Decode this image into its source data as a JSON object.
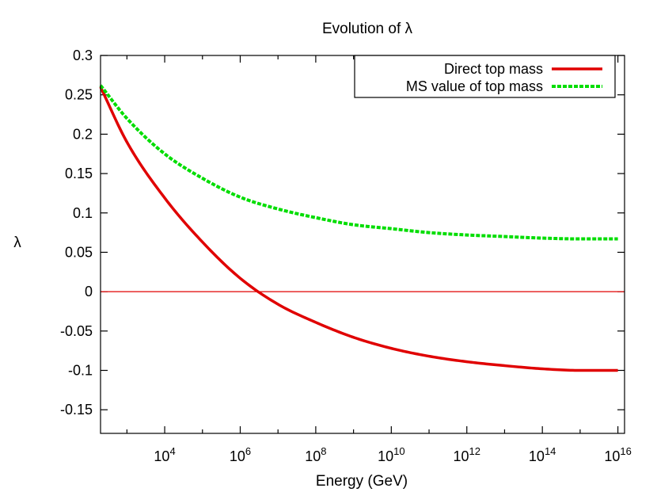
{
  "chart_data": {
    "type": "line",
    "title": "Evolution of λ",
    "xlabel": "Energy (GeV)",
    "ylabel": "λ",
    "x_scale": "log",
    "xlim": [
      200,
      15000000000000000
    ],
    "ylim": [
      -0.18,
      0.3
    ],
    "x_ticks": [
      {
        "value": 10000,
        "base": "10",
        "exp": "4"
      },
      {
        "value": 1000000,
        "base": "10",
        "exp": "6"
      },
      {
        "value": 100000000,
        "base": "10",
        "exp": "8"
      },
      {
        "value": 10000000000,
        "base": "10",
        "exp": "10"
      },
      {
        "value": 1000000000000,
        "base": "10",
        "exp": "12"
      },
      {
        "value": 100000000000000,
        "base": "10",
        "exp": "14"
      },
      {
        "value": 10000000000000000,
        "base": "10",
        "exp": "16"
      }
    ],
    "y_ticks": [
      {
        "value": 0.3,
        "label": "0.3"
      },
      {
        "value": 0.25,
        "label": "0.25"
      },
      {
        "value": 0.2,
        "label": "0.2"
      },
      {
        "value": 0.15,
        "label": "0.15"
      },
      {
        "value": 0.1,
        "label": "0.1"
      },
      {
        "value": 0.05,
        "label": "0.05"
      },
      {
        "value": 0,
        "label": "0"
      },
      {
        "value": -0.05,
        "label": "-0.05"
      },
      {
        "value": -0.1,
        "label": "-0.1"
      },
      {
        "value": -0.15,
        "label": "-0.15"
      }
    ],
    "grid": false,
    "legend_position": "top-right",
    "zero_line": {
      "y": 0,
      "color": "#e00000"
    },
    "series": [
      {
        "name": "Direct top mass",
        "color": "#e00000",
        "style": "solid",
        "x": [
          200,
          1000,
          10000,
          100000,
          1000000,
          10000000,
          100000000,
          1000000000,
          10000000000,
          100000000000,
          1000000000000,
          10000000000000,
          100000000000000,
          1000000000000000,
          10000000000000000
        ],
        "y": [
          0.26,
          0.19,
          0.119,
          0.063,
          0.017,
          -0.016,
          -0.039,
          -0.058,
          -0.072,
          -0.082,
          -0.089,
          -0.094,
          -0.098,
          -0.1,
          -0.1
        ]
      },
      {
        "name": "MS value of top mass",
        "color": "#00dd00",
        "style": "dashed",
        "x": [
          200,
          1000,
          10000,
          100000,
          1000000,
          10000000,
          100000000,
          1000000000,
          10000000000,
          100000000000,
          1000000000000,
          10000000000000,
          100000000000000,
          1000000000000000,
          10000000000000000
        ],
        "y": [
          0.262,
          0.22,
          0.175,
          0.144,
          0.12,
          0.105,
          0.094,
          0.085,
          0.08,
          0.075,
          0.072,
          0.07,
          0.068,
          0.067,
          0.067
        ]
      }
    ]
  }
}
